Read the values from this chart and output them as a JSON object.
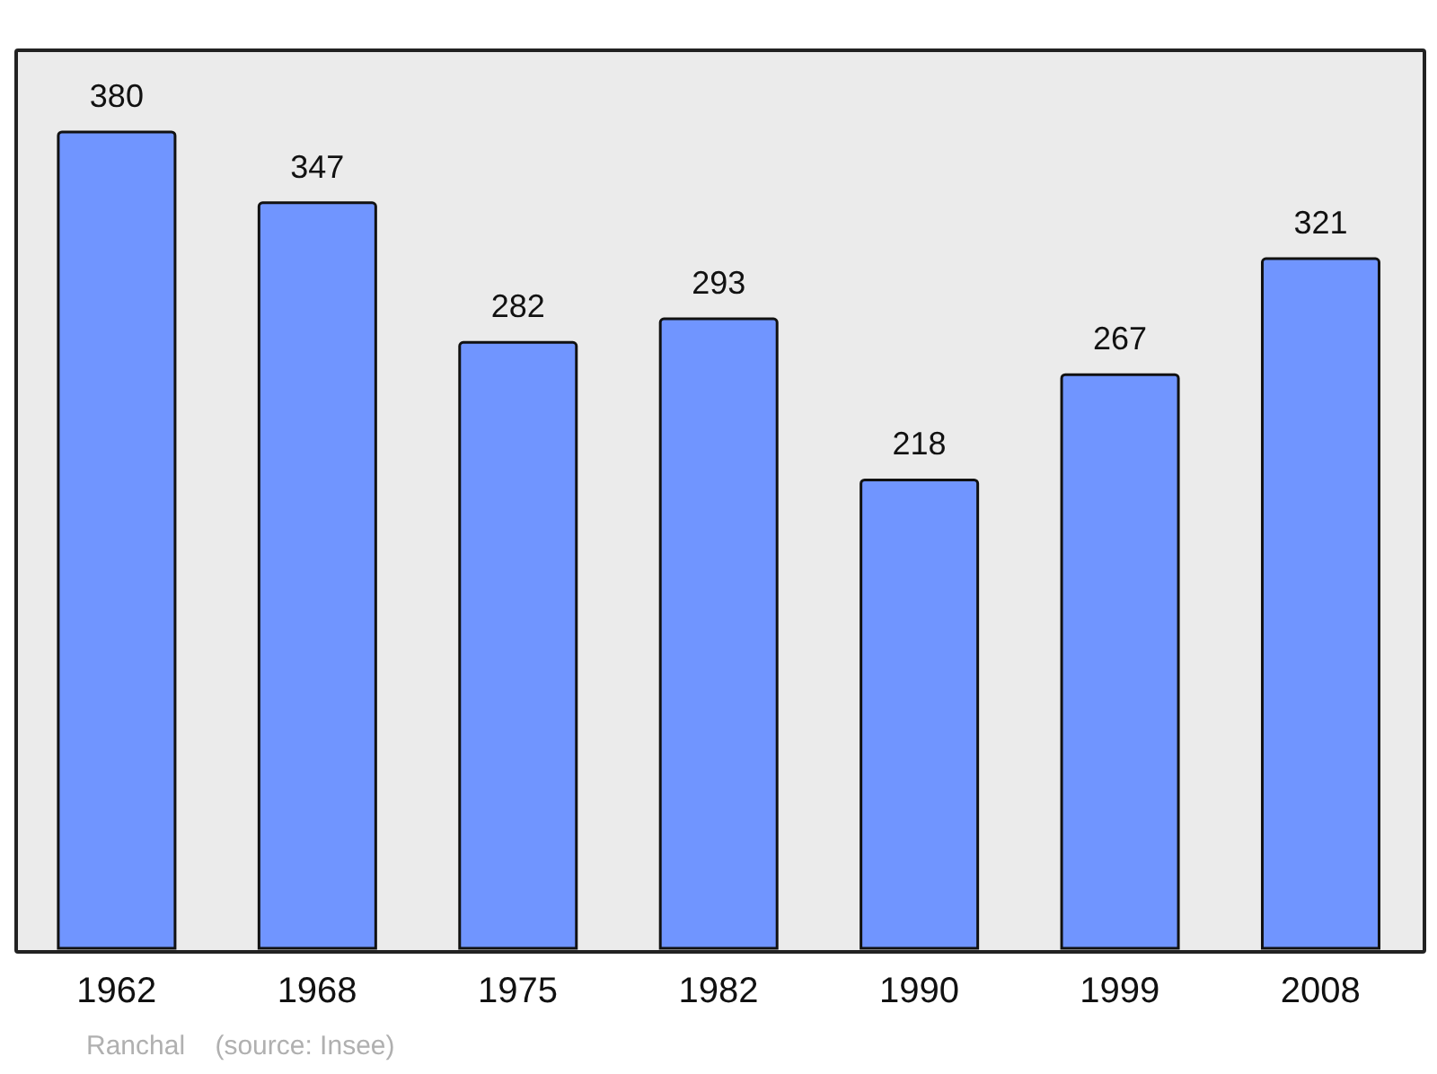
{
  "chart_data": {
    "type": "bar",
    "categories": [
      "1962",
      "1968",
      "1975",
      "1982",
      "1990",
      "1999",
      "2008"
    ],
    "values": [
      380,
      347,
      282,
      293,
      218,
      267,
      321
    ],
    "color": "#7095ff",
    "data_labels": true,
    "annotations": [
      "Ranchal    (source: Insee)"
    ]
  }
}
